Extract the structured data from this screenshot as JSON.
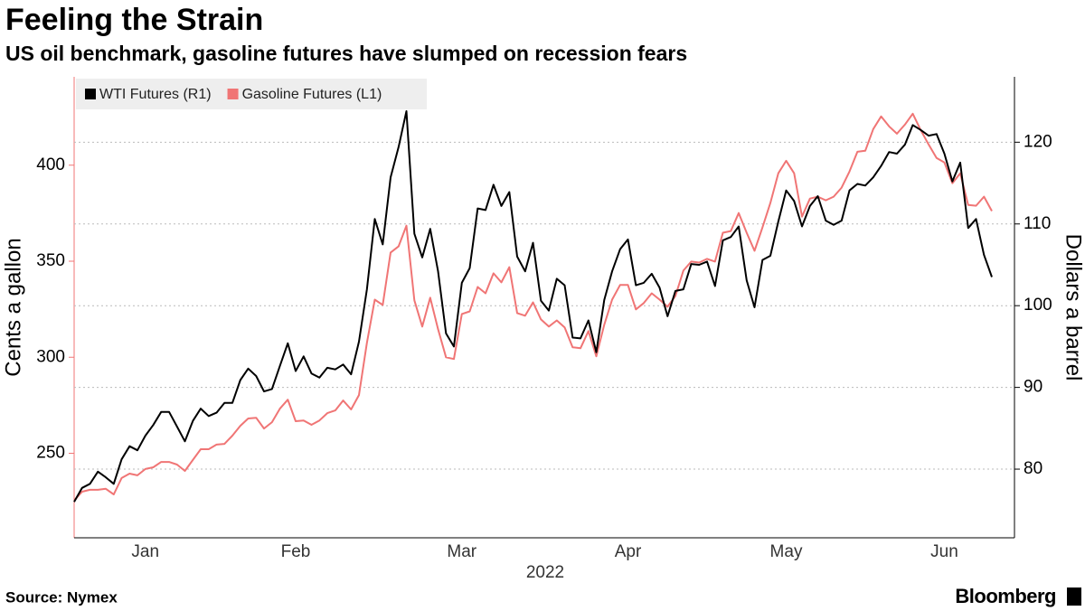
{
  "chart_data": {
    "type": "line",
    "title": "Feeling the Strain",
    "subtitle": "US oil benchmark, gasoline futures have slumped on recession fears",
    "xlabel": "2022",
    "ylabel": "Cents a gallon",
    "y2label": "Dollars a barrel",
    "source": "Source: Nymex",
    "brand": "Bloomberg",
    "legend": "top-left",
    "grid": "y2",
    "categories": [
      null,
      null,
      null,
      null,
      null,
      null,
      null,
      null,
      null,
      "Jan",
      null,
      null,
      null,
      null,
      null,
      null,
      null,
      null,
      null,
      null,
      null,
      null,
      null,
      null,
      null,
      null,
      null,
      null,
      "Feb",
      null,
      null,
      null,
      null,
      null,
      null,
      null,
      null,
      null,
      null,
      null,
      null,
      null,
      null,
      null,
      null,
      null,
      null,
      null,
      null,
      "Mar",
      null,
      null,
      null,
      null,
      null,
      null,
      null,
      null,
      null,
      null,
      null,
      null,
      null,
      null,
      null,
      null,
      null,
      null,
      null,
      null,
      "Apr",
      null,
      null,
      null,
      null,
      null,
      null,
      null,
      null,
      null,
      null,
      null,
      null,
      null,
      null,
      null,
      null,
      null,
      null,
      null,
      "May",
      null,
      null,
      null,
      null,
      null,
      null,
      null,
      null,
      null,
      null,
      null,
      null,
      null,
      null,
      null,
      null,
      null,
      null,
      null,
      "Jun",
      null,
      null,
      null,
      null,
      null,
      null
    ],
    "ylim": [
      206,
      446
    ],
    "yticks": [
      250,
      300,
      350,
      400
    ],
    "y2lim": [
      71.6,
      128
    ],
    "y2ticks": [
      80,
      90,
      100,
      110,
      120
    ],
    "series": [
      {
        "name": "WTI Futures (R1)",
        "color": "#000000",
        "axis": "y2",
        "values": [
          76.0,
          77.7,
          78.2,
          79.7,
          79.0,
          78.2,
          81.2,
          82.8,
          82.3,
          84.1,
          85.4,
          87.0,
          87.0,
          85.2,
          83.4,
          85.9,
          87.4,
          86.5,
          86.9,
          88.1,
          88.1,
          90.9,
          92.3,
          91.4,
          89.5,
          89.8,
          92.6,
          95.4,
          92.0,
          93.8,
          91.7,
          91.2,
          92.4,
          92.2,
          92.8,
          91.6,
          95.6,
          102.0,
          110.6,
          107.5,
          115.7,
          119.4,
          123.8,
          108.8,
          105.9,
          109.4,
          104.2,
          96.6,
          95.0,
          102.8,
          104.6,
          111.9,
          111.7,
          114.8,
          112.2,
          113.9,
          106.0,
          104.2,
          107.7,
          100.6,
          99.4,
          103.3,
          102.5,
          96.1,
          96.0,
          98.2,
          94.3,
          100.7,
          104.2,
          106.9,
          108.1,
          102.5,
          102.8,
          103.9,
          102.2,
          98.7,
          101.8,
          102.0,
          105.1,
          105.0,
          105.4,
          102.4,
          108.0,
          108.4,
          109.7,
          103.1,
          99.8,
          105.6,
          106.1,
          110.3,
          114.1,
          112.8,
          109.7,
          112.2,
          113.4,
          110.4,
          109.9,
          110.4,
          114.1,
          114.9,
          114.7,
          115.7,
          117.1,
          118.8,
          118.6,
          119.7,
          122.1,
          121.5,
          120.8,
          121.0,
          118.6,
          115.2,
          117.5,
          109.5,
          110.6,
          106.2,
          103.5
        ]
      },
      {
        "name": "Gasoline Futures (L1)",
        "color": "#f07575",
        "axis": "y",
        "values": [
          225.4,
          230.0,
          231.0,
          231.0,
          231.5,
          228.6,
          237.1,
          239.4,
          238.5,
          241.8,
          242.7,
          245.5,
          245.5,
          244.1,
          240.8,
          246.5,
          252.1,
          252.1,
          254.5,
          254.9,
          259.2,
          264.3,
          268.1,
          268.5,
          262.9,
          266.2,
          273.2,
          277.9,
          266.7,
          267.1,
          264.8,
          267.1,
          270.9,
          272.3,
          277.5,
          272.8,
          280.3,
          307.5,
          330.0,
          327.2,
          354.5,
          357.7,
          368.5,
          329.6,
          316.0,
          331.0,
          314.6,
          300.0,
          299.1,
          322.5,
          323.9,
          336.6,
          333.3,
          343.7,
          339.0,
          346.9,
          323.0,
          321.6,
          328.6,
          319.7,
          316.0,
          319.2,
          315.5,
          305.2,
          304.7,
          313.6,
          300.5,
          316.9,
          330.0,
          337.6,
          337.6,
          324.9,
          328.2,
          333.3,
          330.0,
          326.3,
          331.9,
          345.1,
          349.8,
          349.3,
          351.2,
          349.8,
          364.8,
          365.7,
          375.1,
          364.8,
          355.4,
          367.6,
          380.3,
          395.8,
          402.3,
          395.8,
          373.2,
          382.6,
          383.6,
          381.7,
          383.6,
          388.3,
          396.7,
          407.0,
          407.5,
          418.8,
          425.4,
          420.2,
          416.4,
          421.1,
          426.8,
          418.3,
          410.8,
          403.8,
          401.4,
          390.6,
          395.8,
          379.3,
          378.9,
          383.6,
          376.1
        ]
      }
    ]
  }
}
